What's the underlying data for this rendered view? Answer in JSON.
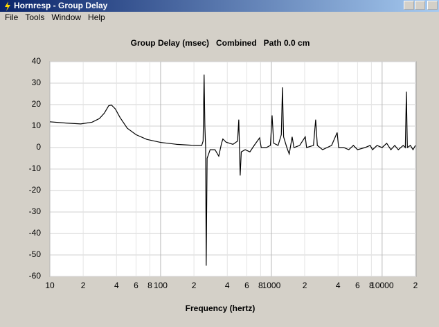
{
  "window": {
    "title": "Hornresp - Group Delay",
    "menu": [
      "File",
      "Tools",
      "Window",
      "Help"
    ]
  },
  "chart_data": {
    "type": "line",
    "title": "Group Delay (msec)   Combined   Path 0.0 cm",
    "x_label": "Frequency (hertz)",
    "xscale": "log",
    "grid": true,
    "color": "#000000",
    "xlim": [
      10,
      20000
    ],
    "ylim": [
      -60,
      40
    ],
    "xticks": [
      10,
      {
        "value": 20,
        "label": "2"
      },
      {
        "value": 40,
        "label": "4"
      },
      {
        "value": 60,
        "label": "6"
      },
      {
        "value": 80,
        "label": "8"
      },
      100,
      {
        "value": 200,
        "label": "2"
      },
      {
        "value": 400,
        "label": "4"
      },
      {
        "value": 600,
        "label": "6"
      },
      {
        "value": 800,
        "label": "8"
      },
      1000,
      {
        "value": 2000,
        "label": "2"
      },
      {
        "value": 4000,
        "label": "4"
      },
      {
        "value": 6000,
        "label": "6"
      },
      {
        "value": 8000,
        "label": "8"
      },
      10000,
      {
        "value": 20000,
        "label": "2"
      }
    ],
    "yticks": [
      40,
      30,
      20,
      10,
      0,
      -10,
      -20,
      -30,
      -40,
      -50,
      -60
    ],
    "x": [
      10,
      14,
      19,
      24,
      28,
      31,
      34,
      36,
      39,
      43,
      50,
      60,
      75,
      100,
      140,
      190,
      235,
      242,
      247,
      251,
      255,
      258,
      263,
      280,
      310,
      335,
      355,
      365,
      390,
      450,
      495,
      508,
      515,
      523,
      535,
      580,
      640,
      700,
      783,
      810,
      900,
      980,
      1015,
      1050,
      1150,
      1230,
      1259,
      1290,
      1380,
      1450,
      1540,
      1600,
      1800,
      2023,
      2080,
      2400,
      2512,
      2600,
      2900,
      3500,
      3926,
      4050,
      4500,
      5000,
      5500,
      6000,
      7000,
      7800,
      8200,
      9000,
      10000,
      11000,
      12000,
      13000,
      14000,
      15500,
      16200,
      16560,
      16900,
      18000,
      19000,
      20000
    ],
    "values": [
      12,
      11.4,
      11,
      11.8,
      13.5,
      16,
      19.5,
      19.8,
      18,
      14,
      9,
      6,
      3.8,
      2.4,
      1.5,
      1.1,
      1,
      3,
      34,
      10,
      0,
      -55,
      -5,
      -1,
      -1,
      -4,
      2,
      4,
      2.5,
      1.5,
      3,
      13,
      0,
      -13,
      -2,
      -1,
      -2,
      1,
      4.5,
      0,
      0,
      1,
      15,
      2,
      1,
      6,
      28,
      5,
      0,
      -3,
      5,
      0,
      1,
      5,
      0,
      1,
      13,
      1,
      -1,
      1,
      7,
      0,
      0,
      -1,
      1,
      -1,
      0,
      1,
      -1,
      1,
      0,
      2,
      -1,
      1,
      -1,
      1,
      0,
      26,
      0,
      1,
      -1,
      1
    ]
  }
}
